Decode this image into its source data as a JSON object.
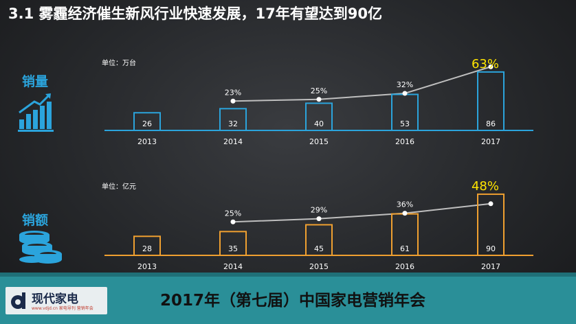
{
  "title": "3.1 雾霾经济催生新风行业快速发展，17年有望达到90亿",
  "labels": {
    "volume": "销量",
    "sales": "销额"
  },
  "footer": {
    "title": "2017年（第七届）中国家电营销年会",
    "logo_name": "现代家电",
    "logo_sub": "www.vdjd.cn 家电导刊 营销年会"
  },
  "icons": {
    "volume": "bar-chart-growth-icon",
    "sales": "coin-stack-icon"
  },
  "colors": {
    "volume": "#2ba4dc",
    "sales": "#f0a030",
    "highlight": "#ffe500",
    "line": "#bfbfbf"
  },
  "chart_data": [
    {
      "type": "bar",
      "unit_label": "单位：万台",
      "categories": [
        "2013",
        "2014",
        "2015",
        "2016",
        "2017"
      ],
      "values": [
        26,
        32,
        40,
        53,
        86
      ],
      "growth_labels": [
        "",
        "23%",
        "25%",
        "32%",
        "63%"
      ],
      "growth_values": [
        null,
        23,
        25,
        32,
        63
      ]
    },
    {
      "type": "bar",
      "unit_label": "单位：亿元",
      "categories": [
        "2013",
        "2014",
        "2015",
        "2016",
        "2017"
      ],
      "values": [
        28,
        35,
        45,
        61,
        90
      ],
      "growth_labels": [
        "",
        "25%",
        "29%",
        "36%",
        "48%"
      ],
      "growth_values": [
        null,
        25,
        29,
        36,
        48
      ]
    }
  ]
}
